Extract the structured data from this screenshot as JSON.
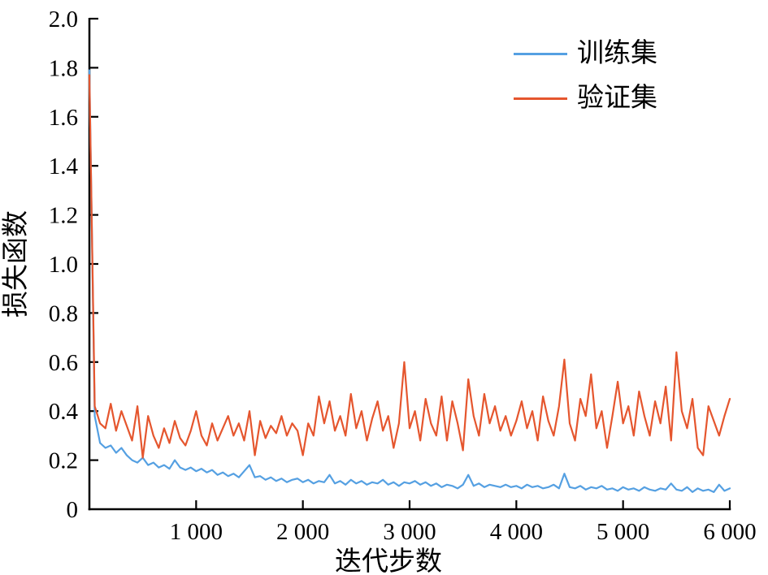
{
  "chart_data": {
    "type": "line",
    "title": "",
    "xlabel": "迭代步数",
    "ylabel": "损失函数",
    "xlim": [
      0,
      6000
    ],
    "ylim": [
      0,
      2.0
    ],
    "grid": false,
    "legend_position": "upper right",
    "background_color": "#ffffff",
    "axis_color": "#000000",
    "x_ticks": [
      1000,
      2000,
      3000,
      4000,
      5000,
      6000
    ],
    "x_tick_labels": [
      "1 000",
      "2 000",
      "3 000",
      "4 000",
      "5 000",
      "6 000"
    ],
    "y_ticks": [
      0,
      0.2,
      0.4,
      0.6,
      0.8,
      1.0,
      1.2,
      1.4,
      1.6,
      1.8,
      2.0
    ],
    "y_tick_labels": [
      "0",
      "0.2",
      "0.4",
      "0.6",
      "0.8",
      "1.0",
      "1.2",
      "1.4",
      "1.6",
      "1.8",
      "2.0"
    ],
    "x": [
      0,
      50,
      100,
      150,
      200,
      250,
      300,
      350,
      400,
      450,
      500,
      550,
      600,
      650,
      700,
      750,
      800,
      850,
      900,
      950,
      1000,
      1050,
      1100,
      1150,
      1200,
      1250,
      1300,
      1350,
      1400,
      1450,
      1500,
      1550,
      1600,
      1650,
      1700,
      1750,
      1800,
      1850,
      1900,
      1950,
      2000,
      2050,
      2100,
      2150,
      2200,
      2250,
      2300,
      2350,
      2400,
      2450,
      2500,
      2550,
      2600,
      2650,
      2700,
      2750,
      2800,
      2850,
      2900,
      2950,
      3000,
      3050,
      3100,
      3150,
      3200,
      3250,
      3300,
      3350,
      3400,
      3450,
      3500,
      3550,
      3600,
      3650,
      3700,
      3750,
      3800,
      3850,
      3900,
      3950,
      4000,
      4050,
      4100,
      4150,
      4200,
      4250,
      4300,
      4350,
      4400,
      4450,
      4500,
      4550,
      4600,
      4650,
      4700,
      4750,
      4800,
      4850,
      4900,
      4950,
      5000,
      5050,
      5100,
      5150,
      5200,
      5250,
      5300,
      5350,
      5400,
      5450,
      5500,
      5550,
      5600,
      5650,
      5700,
      5750,
      5800,
      5850,
      5900,
      5950,
      6000
    ],
    "series": [
      {
        "name": "训练集",
        "color": "#55A0E2",
        "y": [
          1.79,
          0.38,
          0.27,
          0.25,
          0.26,
          0.23,
          0.25,
          0.22,
          0.2,
          0.19,
          0.21,
          0.18,
          0.19,
          0.17,
          0.18,
          0.165,
          0.2,
          0.17,
          0.16,
          0.17,
          0.155,
          0.165,
          0.15,
          0.16,
          0.14,
          0.15,
          0.135,
          0.145,
          0.13,
          0.155,
          0.18,
          0.13,
          0.135,
          0.12,
          0.13,
          0.115,
          0.125,
          0.11,
          0.12,
          0.125,
          0.11,
          0.12,
          0.105,
          0.115,
          0.11,
          0.14,
          0.105,
          0.115,
          0.1,
          0.12,
          0.105,
          0.115,
          0.1,
          0.11,
          0.105,
          0.12,
          0.1,
          0.11,
          0.095,
          0.11,
          0.105,
          0.115,
          0.1,
          0.11,
          0.095,
          0.105,
          0.09,
          0.1,
          0.095,
          0.085,
          0.1,
          0.14,
          0.095,
          0.105,
          0.09,
          0.1,
          0.095,
          0.09,
          0.1,
          0.09,
          0.095,
          0.085,
          0.1,
          0.09,
          0.095,
          0.085,
          0.09,
          0.1,
          0.085,
          0.145,
          0.09,
          0.085,
          0.095,
          0.08,
          0.09,
          0.085,
          0.095,
          0.08,
          0.085,
          0.075,
          0.09,
          0.08,
          0.085,
          0.075,
          0.09,
          0.08,
          0.075,
          0.085,
          0.08,
          0.105,
          0.08,
          0.075,
          0.09,
          0.07,
          0.085,
          0.075,
          0.08,
          0.07,
          0.1,
          0.075,
          0.085
        ]
      },
      {
        "name": "验证集",
        "color": "#E5562E",
        "y": [
          1.77,
          0.42,
          0.35,
          0.33,
          0.43,
          0.32,
          0.4,
          0.34,
          0.28,
          0.42,
          0.21,
          0.38,
          0.3,
          0.25,
          0.33,
          0.27,
          0.36,
          0.29,
          0.26,
          0.32,
          0.4,
          0.3,
          0.26,
          0.35,
          0.28,
          0.33,
          0.38,
          0.3,
          0.35,
          0.28,
          0.4,
          0.22,
          0.36,
          0.29,
          0.34,
          0.31,
          0.38,
          0.3,
          0.35,
          0.32,
          0.22,
          0.35,
          0.3,
          0.46,
          0.35,
          0.44,
          0.32,
          0.38,
          0.3,
          0.47,
          0.33,
          0.4,
          0.28,
          0.37,
          0.44,
          0.32,
          0.38,
          0.25,
          0.35,
          0.6,
          0.33,
          0.4,
          0.28,
          0.45,
          0.35,
          0.3,
          0.46,
          0.28,
          0.44,
          0.35,
          0.24,
          0.53,
          0.38,
          0.3,
          0.47,
          0.35,
          0.42,
          0.32,
          0.38,
          0.3,
          0.36,
          0.44,
          0.33,
          0.4,
          0.28,
          0.46,
          0.36,
          0.3,
          0.42,
          0.61,
          0.35,
          0.28,
          0.45,
          0.38,
          0.55,
          0.33,
          0.4,
          0.25,
          0.38,
          0.52,
          0.35,
          0.42,
          0.3,
          0.48,
          0.38,
          0.3,
          0.44,
          0.35,
          0.5,
          0.28,
          0.64,
          0.4,
          0.33,
          0.45,
          0.25,
          0.22,
          0.42,
          0.36,
          0.3,
          0.38,
          0.45
        ]
      }
    ]
  }
}
